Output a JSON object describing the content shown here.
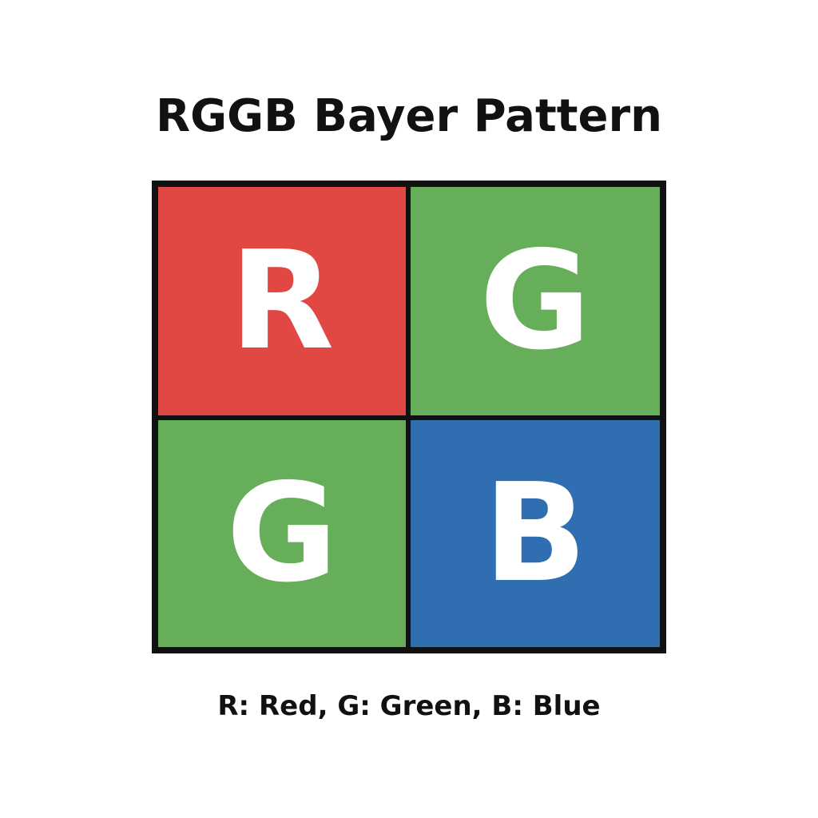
{
  "title": "RGGB Bayer Pattern",
  "cells": [
    {
      "letter": "R",
      "color": "#e24843"
    },
    {
      "letter": "G",
      "color": "#66ae5a"
    },
    {
      "letter": "G",
      "color": "#66ae5a"
    },
    {
      "letter": "B",
      "color": "#2f6fb1"
    }
  ],
  "caption": "R: Red, G: Green, B: Blue"
}
